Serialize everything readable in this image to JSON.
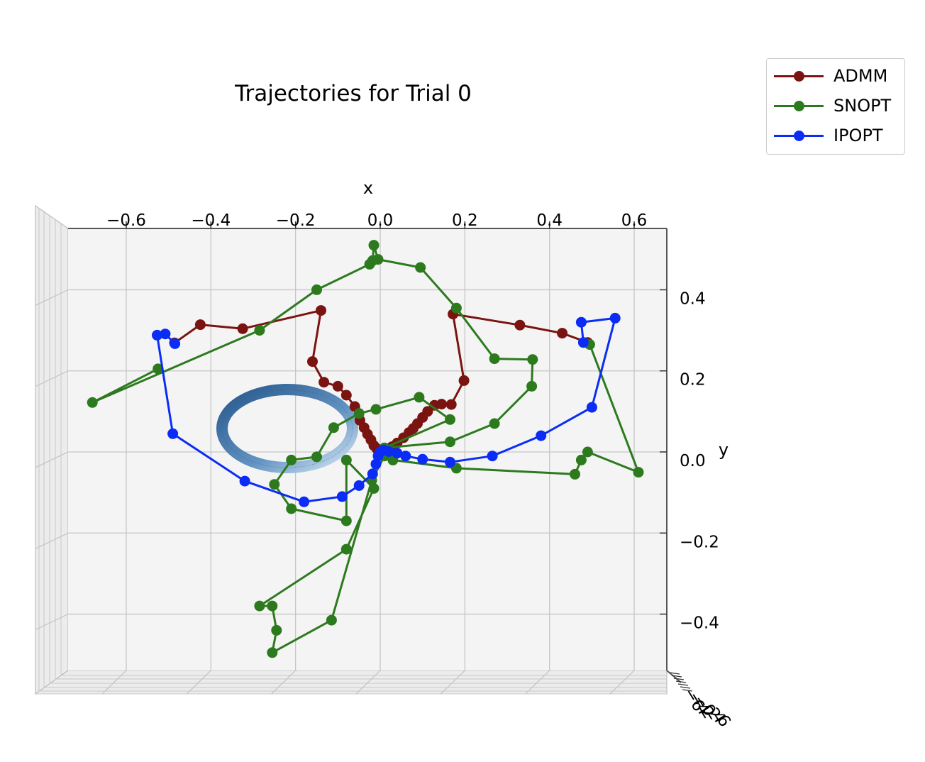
{
  "chart_data": {
    "type": "line",
    "title": "Trajectories for Trial 0",
    "xlabel": "x",
    "ylabel": "y",
    "xticks": [
      "−0.6",
      "−0.4",
      "−0.2",
      "0.0",
      "0.2",
      "0.4",
      "0.6"
    ],
    "xtick_values": [
      -0.6,
      -0.4,
      -0.2,
      0.0,
      0.2,
      0.4,
      0.6
    ],
    "yticks": [
      "−0.4",
      "−0.2",
      "0.0",
      "0.2",
      "0.4"
    ],
    "ytick_values": [
      -0.4,
      -0.2,
      0.0,
      0.2,
      0.4
    ],
    "xlim": [
      -0.73,
      0.68
    ],
    "ylim": [
      -0.54,
      0.55
    ],
    "zticks": [
      "−6",
      "−4",
      "−2",
      "0",
      "2",
      "4",
      "6"
    ],
    "grid": true,
    "legend_position": "upper-right-outside",
    "series": [
      {
        "name": "ADMM",
        "color": "#7a1410",
        "points": [
          [
            -0.486,
            0.269
          ],
          [
            -0.425,
            0.314
          ],
          [
            -0.325,
            0.304
          ],
          [
            -0.14,
            0.349
          ],
          [
            -0.16,
            0.223
          ],
          [
            -0.133,
            0.172
          ],
          [
            -0.1,
            0.162
          ],
          [
            -0.08,
            0.14
          ],
          [
            -0.06,
            0.112
          ],
          [
            -0.048,
            0.078
          ],
          [
            -0.038,
            0.06
          ],
          [
            -0.03,
            0.044
          ],
          [
            -0.022,
            0.03
          ],
          [
            -0.015,
            0.016
          ],
          [
            -0.008,
            0.008
          ],
          [
            -0.002,
            0.004
          ],
          [
            0.005,
            0.005
          ],
          [
            0.015,
            0.008
          ],
          [
            0.028,
            0.013
          ],
          [
            0.04,
            0.022
          ],
          [
            0.055,
            0.035
          ],
          [
            0.068,
            0.048
          ],
          [
            0.078,
            0.058
          ],
          [
            0.088,
            0.07
          ],
          [
            0.1,
            0.085
          ],
          [
            0.112,
            0.1
          ],
          [
            0.128,
            0.115
          ],
          [
            0.145,
            0.118
          ],
          [
            0.168,
            0.117
          ],
          [
            0.198,
            0.176
          ],
          [
            0.172,
            0.34
          ],
          [
            0.33,
            0.313
          ],
          [
            0.43,
            0.293
          ],
          [
            0.49,
            0.27
          ]
        ]
      },
      {
        "name": "SNOPT",
        "color": "#2d7a1e",
        "points": [
          [
            -0.525,
            0.205
          ],
          [
            -0.68,
            0.122
          ],
          [
            -0.285,
            0.3
          ],
          [
            -0.15,
            0.4
          ],
          [
            -0.025,
            0.463
          ],
          [
            -0.018,
            0.472
          ],
          [
            -0.015,
            0.51
          ],
          [
            -0.005,
            0.475
          ],
          [
            0.095,
            0.455
          ],
          [
            0.18,
            0.355
          ],
          [
            0.27,
            0.23
          ],
          [
            0.36,
            0.228
          ],
          [
            0.358,
            0.162
          ],
          [
            0.27,
            0.07
          ],
          [
            0.165,
            0.025
          ],
          [
            0.01,
            0.01
          ],
          [
            0.165,
            0.08
          ],
          [
            0.092,
            0.135
          ],
          [
            -0.01,
            0.105
          ],
          [
            -0.05,
            0.095
          ],
          [
            -0.11,
            0.06
          ],
          [
            -0.15,
            -0.012
          ],
          [
            -0.21,
            -0.02
          ],
          [
            -0.25,
            -0.08
          ],
          [
            -0.21,
            -0.14
          ],
          [
            -0.08,
            -0.17
          ],
          [
            -0.08,
            -0.02
          ],
          [
            -0.015,
            -0.09
          ],
          [
            -0.08,
            -0.24
          ],
          [
            -0.285,
            -0.38
          ],
          [
            -0.255,
            -0.38
          ],
          [
            -0.245,
            -0.44
          ],
          [
            -0.255,
            -0.495
          ],
          [
            -0.115,
            -0.415
          ],
          [
            -0.02,
            -0.07
          ],
          [
            0.01,
            -0.01
          ],
          [
            0.03,
            -0.02
          ],
          [
            0.18,
            -0.04
          ],
          [
            0.46,
            -0.055
          ],
          [
            0.475,
            -0.02
          ],
          [
            0.49,
            0.0
          ],
          [
            0.61,
            -0.05
          ],
          [
            0.495,
            0.265
          ]
        ]
      },
      {
        "name": "IPOPT",
        "color": "#0a2cf5",
        "points": [
          [
            -0.485,
            0.267
          ],
          [
            -0.508,
            0.291
          ],
          [
            -0.527,
            0.288
          ],
          [
            -0.49,
            0.045
          ],
          [
            -0.32,
            -0.072
          ],
          [
            -0.18,
            -0.123
          ],
          [
            -0.09,
            -0.11
          ],
          [
            -0.05,
            -0.083
          ],
          [
            -0.018,
            -0.054
          ],
          [
            -0.01,
            -0.03
          ],
          [
            -0.005,
            -0.01
          ],
          [
            0.0,
            0.0
          ],
          [
            0.008,
            0.005
          ],
          [
            0.02,
            0.001
          ],
          [
            0.04,
            -0.003
          ],
          [
            0.06,
            -0.01
          ],
          [
            0.1,
            -0.018
          ],
          [
            0.165,
            -0.025
          ],
          [
            0.265,
            -0.01
          ],
          [
            0.38,
            0.04
          ],
          [
            0.5,
            0.11
          ],
          [
            0.555,
            0.33
          ],
          [
            0.475,
            0.32
          ],
          [
            0.48,
            0.27
          ]
        ]
      }
    ]
  },
  "legend": {
    "items": [
      {
        "label": "ADMM",
        "color": "#7a1410"
      },
      {
        "label": "SNOPT",
        "color": "#2d7a1e"
      },
      {
        "label": "IPOPT",
        "color": "#0a2cf5"
      }
    ]
  }
}
